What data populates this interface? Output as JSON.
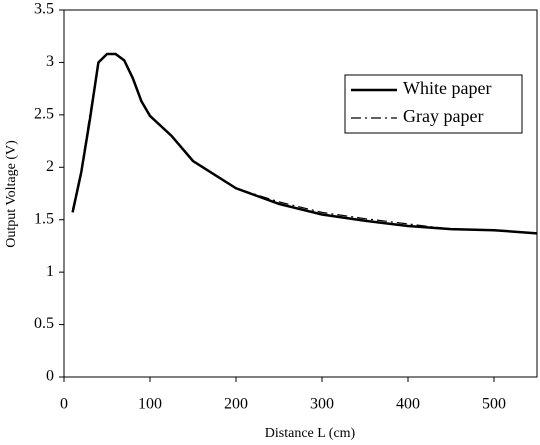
{
  "chart_data": {
    "type": "line",
    "x_label": "Distance L (cm)",
    "y_label": "Output Voltage (V)",
    "x": [
      10,
      20,
      30,
      40,
      50,
      60,
      70,
      80,
      90,
      100,
      125,
      150,
      200,
      250,
      300,
      350,
      400,
      450,
      500,
      550
    ],
    "series": [
      {
        "name": "White paper",
        "color": "#000000",
        "dash": "solid",
        "values": [
          1.57,
          1.95,
          2.45,
          3.0,
          3.08,
          3.08,
          3.02,
          2.85,
          2.63,
          2.49,
          2.3,
          2.06,
          1.8,
          1.65,
          1.55,
          1.49,
          1.44,
          1.41,
          1.4,
          1.37
        ]
      },
      {
        "name": "Gray paper",
        "color": "#000000",
        "dash": "dashdot",
        "values": [
          1.6,
          1.97,
          2.5,
          3.0,
          3.08,
          3.08,
          3.02,
          2.85,
          2.63,
          2.49,
          2.3,
          2.06,
          1.8,
          1.67,
          1.57,
          1.51,
          1.46,
          1.41,
          1.4,
          1.37
        ]
      }
    ],
    "xlim": [
      0,
      550
    ],
    "xticks": [
      0,
      100,
      200,
      300,
      400,
      500
    ],
    "ylim": [
      0,
      3.5
    ],
    "yticks": [
      0,
      0.5,
      1,
      1.5,
      2,
      2.5,
      3,
      3.5
    ],
    "grid": false,
    "legend": "upper right"
  }
}
